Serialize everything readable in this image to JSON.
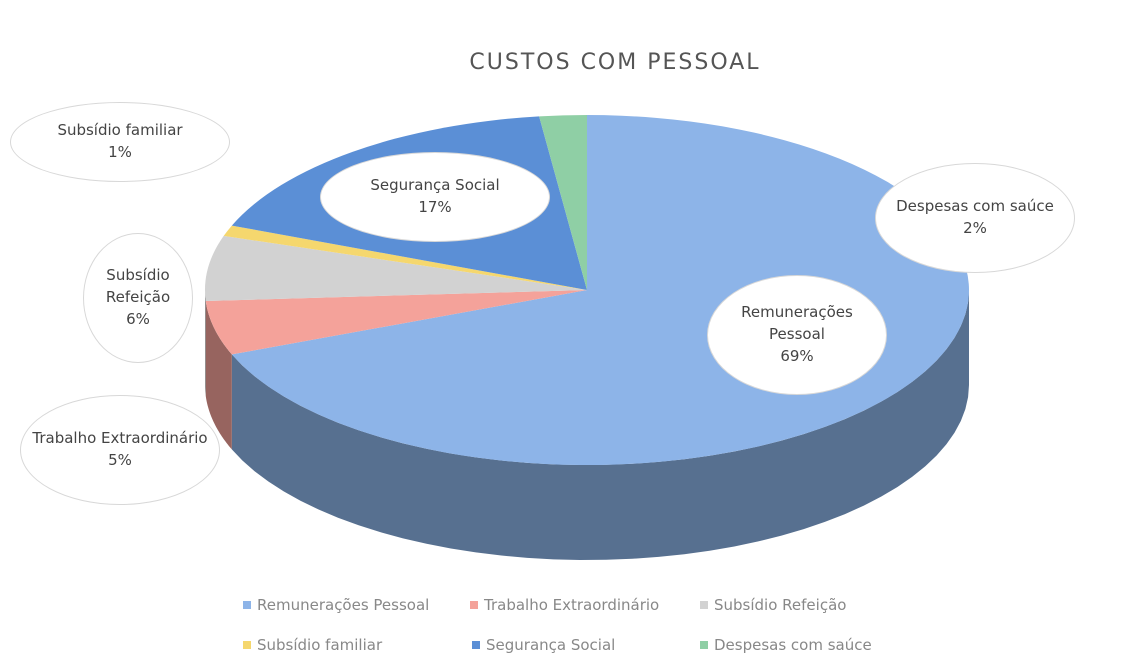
{
  "chart_data": {
    "type": "pie",
    "title": "CUSTOS COM PESSOAL",
    "categories": [
      "Remunerações Pessoal",
      "Trabalho Extraordinário",
      "Subsídio Refeição",
      "Subsídio familiar",
      "Segurança Social",
      "Despesas com saúce"
    ],
    "values": [
      69,
      5,
      6,
      1,
      17,
      2
    ],
    "value_labels": [
      "69%",
      "5%",
      "6%",
      "1%",
      "17%",
      "2%"
    ],
    "colors": [
      "#8db4e8",
      "#f4a29a",
      "#d2d2d2",
      "#f5d76e",
      "#5b8fd6",
      "#8fcfa5"
    ],
    "legend": "bottom"
  }
}
